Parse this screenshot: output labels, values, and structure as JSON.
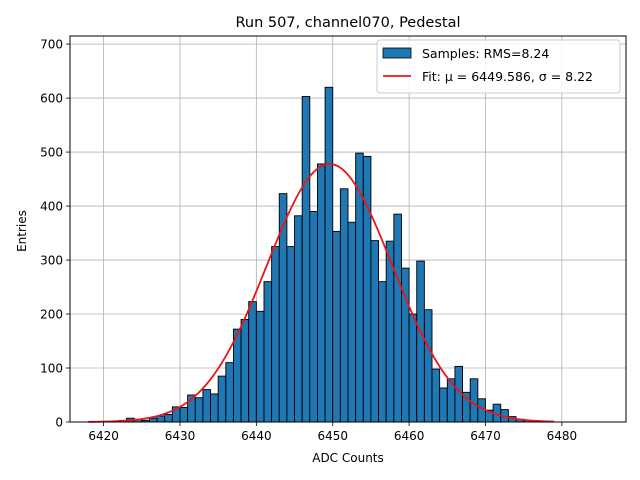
{
  "chart_data": {
    "type": "bar",
    "title": "Run 507, channel070, Pedestal",
    "xlabel": "ADC Counts",
    "ylabel": "Entries",
    "xlim": [
      6415.6,
      6488.4
    ],
    "ylim": [
      0,
      715
    ],
    "xticks": [
      6420,
      6430,
      6440,
      6450,
      6460,
      6470,
      6480
    ],
    "yticks": [
      0,
      100,
      200,
      300,
      400,
      500,
      600,
      700
    ],
    "grid": true,
    "legend_position": "top-right",
    "colors": {
      "bars": "#1f77b4",
      "fit": "#e8161b",
      "grid": "#b0b0b0"
    },
    "series": [
      {
        "name": "Samples: RMS=8.24",
        "kind": "histogram",
        "bin_width": 1,
        "bin_start": 6422,
        "values": [
          3,
          7,
          5,
          3,
          7,
          11,
          14,
          28,
          27,
          50,
          45,
          60,
          52,
          85,
          110,
          172,
          190,
          223,
          205,
          260,
          325,
          423,
          325,
          382,
          603,
          390,
          478,
          620,
          353,
          432,
          370,
          498,
          492,
          336,
          260,
          335,
          385,
          285,
          200,
          298,
          208,
          98,
          63,
          80,
          103,
          55,
          80,
          43,
          22,
          33,
          23,
          10,
          5,
          3,
          2,
          1
        ]
      },
      {
        "name": "Fit",
        "kind": "gaussian",
        "mu": 6449.586,
        "sigma": 8.22,
        "amplitude": 478,
        "x_range": [
          6418,
          6479
        ]
      }
    ],
    "legend": [
      {
        "text": "Samples: RMS=8.24",
        "kind": "patch"
      },
      {
        "text": "Fit: μ = 6449.586, σ = 8.22",
        "kind": "line"
      }
    ]
  }
}
